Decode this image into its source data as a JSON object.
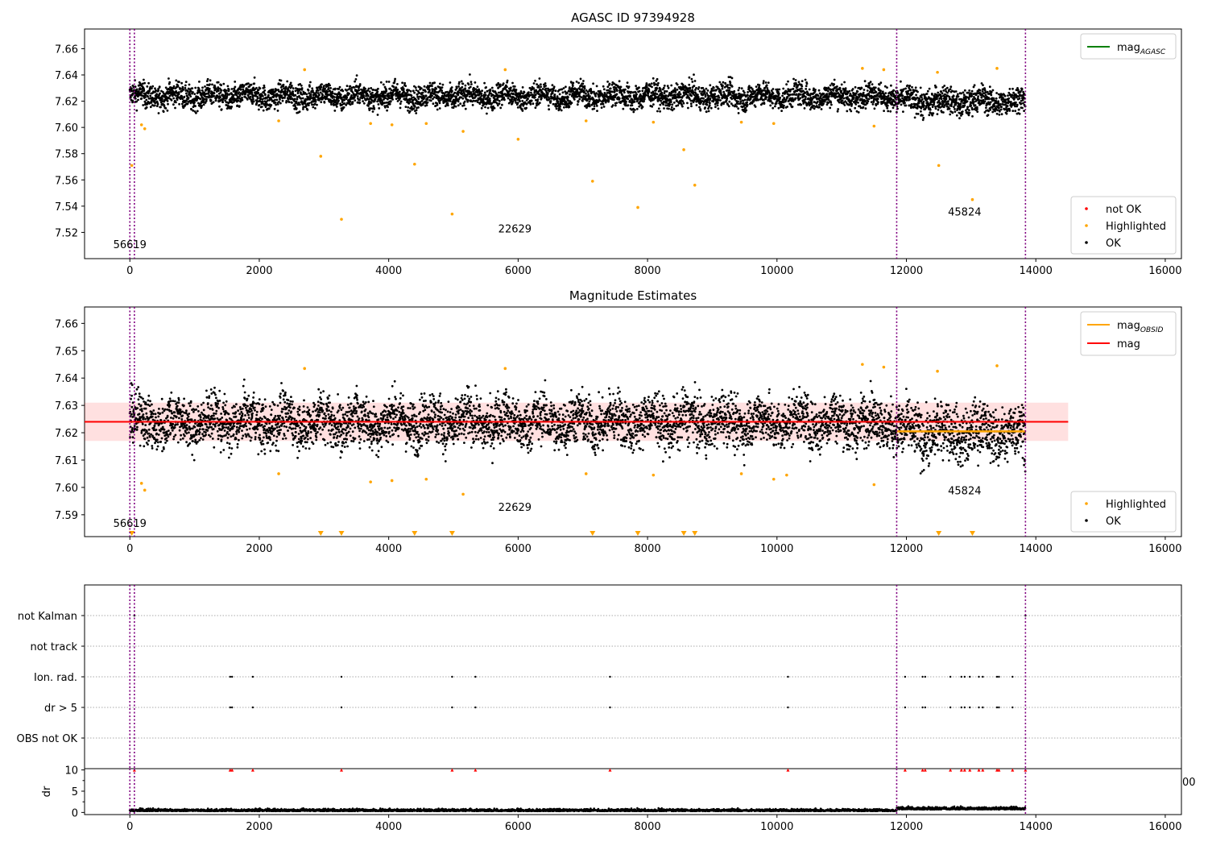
{
  "chart_data": [
    {
      "type": "scatter",
      "title": "AGASC ID 97394928",
      "xlim": [
        -700,
        16250
      ],
      "ylim": [
        7.5,
        7.675
      ],
      "x_ticks": [
        0,
        2000,
        4000,
        6000,
        8000,
        10000,
        12000,
        14000,
        16000
      ],
      "y_ticks": [
        7.52,
        7.54,
        7.56,
        7.58,
        7.6,
        7.62,
        7.64,
        7.66
      ],
      "x_tick_labels": [
        "0",
        "2000",
        "4000",
        "6000",
        "8000",
        "10000",
        "12000",
        "14000",
        "16000"
      ],
      "y_tick_labels": [
        "7.52",
        "7.54",
        "7.56",
        "7.58",
        "7.60",
        "7.62",
        "7.64",
        "7.66"
      ],
      "legend_top": {
        "placement": "top-right",
        "entries": [
          {
            "label": "mag",
            "sub": "AGASC",
            "color": "#008000"
          }
        ]
      },
      "legend_bottom": {
        "placement": "bottom-right",
        "entries": [
          {
            "label": "not OK",
            "color": "#ff0000"
          },
          {
            "label": "Highlighted",
            "color": "#ffa500"
          },
          {
            "label": "OK",
            "color": "#000000"
          }
        ]
      },
      "obsid_boundaries": [
        0,
        70,
        11850,
        13840
      ],
      "obsid_labels": [
        {
          "text": "56619",
          "x": 0,
          "y": 7.508
        },
        {
          "text": "22629",
          "x": 5950,
          "y": 7.52
        },
        {
          "text": "45824",
          "x": 12900,
          "y": 7.533
        }
      ],
      "segments": [
        {
          "x": [
            0,
            11850
          ],
          "center": 7.624,
          "spread": 0.006
        },
        {
          "x": [
            11850,
            13840
          ],
          "center": 7.62,
          "spread": 0.0065
        }
      ],
      "highlighted_points": [
        [
          30,
          7.571
        ],
        [
          180,
          7.602
        ],
        [
          230,
          7.599
        ],
        [
          2300,
          7.605
        ],
        [
          2700,
          7.644
        ],
        [
          2950,
          7.578
        ],
        [
          3270,
          7.53
        ],
        [
          3720,
          7.603
        ],
        [
          4050,
          7.602
        ],
        [
          4400,
          7.572
        ],
        [
          4580,
          7.603
        ],
        [
          4980,
          7.534
        ],
        [
          5150,
          7.597
        ],
        [
          5800,
          7.644
        ],
        [
          6000,
          7.591
        ],
        [
          7050,
          7.605
        ],
        [
          7150,
          7.559
        ],
        [
          7850,
          7.539
        ],
        [
          8090,
          7.604
        ],
        [
          8560,
          7.583
        ],
        [
          8730,
          7.556
        ],
        [
          9450,
          7.604
        ],
        [
          9950,
          7.603
        ],
        [
          11320,
          7.645
        ],
        [
          11500,
          7.601
        ],
        [
          11650,
          7.644
        ],
        [
          12480,
          7.642
        ],
        [
          12500,
          7.571
        ],
        [
          13020,
          7.545
        ],
        [
          13400,
          7.645
        ]
      ]
    },
    {
      "type": "scatter",
      "title": "Magnitude Estimates",
      "xlim": [
        -700,
        16250
      ],
      "ylim": [
        7.582,
        7.666
      ],
      "x_ticks": [
        0,
        2000,
        4000,
        6000,
        8000,
        10000,
        12000,
        14000,
        16000
      ],
      "y_ticks": [
        7.59,
        7.6,
        7.61,
        7.62,
        7.63,
        7.64,
        7.65,
        7.66
      ],
      "x_tick_labels": [
        "0",
        "2000",
        "4000",
        "6000",
        "8000",
        "10000",
        "12000",
        "14000",
        "16000"
      ],
      "y_tick_labels": [
        "7.59",
        "7.60",
        "7.61",
        "7.62",
        "7.63",
        "7.64",
        "7.65",
        "7.66"
      ],
      "legend_top": {
        "placement": "top-right",
        "entries": [
          {
            "label": "mag",
            "sub": "OBSID",
            "color": "#ffa500"
          },
          {
            "label": "mag",
            "sub": "",
            "color": "#ff0000"
          }
        ]
      },
      "legend_bottom": {
        "placement": "bottom-right",
        "entries": [
          {
            "label": "Highlighted",
            "color": "#ffa500"
          },
          {
            "label": "OK",
            "color": "#000000"
          }
        ]
      },
      "obsid_boundaries": [
        0,
        70,
        11850,
        13840
      ],
      "obsid_labels": [
        {
          "text": "56619",
          "x": 0,
          "y": 7.5855
        },
        {
          "text": "22629",
          "x": 5950,
          "y": 7.5915
        },
        {
          "text": "45824",
          "x": 12900,
          "y": 7.5975
        }
      ],
      "mag_line": {
        "value": 7.624,
        "band": [
          7.617,
          7.631
        ],
        "x": [
          -700,
          14500
        ]
      },
      "obsid_mag_lines": [
        {
          "x": [
            11850,
            13840
          ],
          "value": 7.6205
        }
      ],
      "segments": [
        {
          "x": [
            0,
            11850
          ],
          "center": 7.624,
          "spread": 0.006
        },
        {
          "x": [
            11850,
            13840
          ],
          "center": 7.62,
          "spread": 0.0065
        }
      ],
      "highlighted_points": [
        [
          180,
          7.6015
        ],
        [
          230,
          7.599
        ],
        [
          2300,
          7.605
        ],
        [
          2700,
          7.6435
        ],
        [
          3720,
          7.602
        ],
        [
          4050,
          7.6025
        ],
        [
          4580,
          7.603
        ],
        [
          5150,
          7.5975
        ],
        [
          5800,
          7.6435
        ],
        [
          7050,
          7.605
        ],
        [
          8090,
          7.6045
        ],
        [
          9450,
          7.605
        ],
        [
          9950,
          7.603
        ],
        [
          10150,
          7.6045
        ],
        [
          11320,
          7.645
        ],
        [
          11500,
          7.601
        ],
        [
          11650,
          7.644
        ],
        [
          12480,
          7.6425
        ],
        [
          13400,
          7.6445
        ]
      ],
      "offscale_markers": [
        30,
        2950,
        3270,
        4400,
        4980,
        7150,
        7850,
        8560,
        8730,
        12500,
        13020
      ]
    },
    {
      "type": "scatter",
      "title": "",
      "xlim": [
        -700,
        16250
      ],
      "categories": [
        "not Kalman",
        "not track",
        "Ion. rad.",
        "dr > 5",
        "OBS not OK"
      ],
      "obsid_boundaries": [
        0,
        70,
        11850,
        13840
      ],
      "flag_points": {
        "not Kalman": [
          70,
          13840
        ],
        "not track": [],
        "Ion. rad.": [
          1550,
          1580,
          1900,
          3270,
          4980,
          5340,
          7420,
          10170,
          11980,
          12250,
          12290,
          12680,
          12850,
          12900,
          12980,
          13120,
          13180,
          13400,
          13430,
          13640
        ],
        "dr > 5": [
          1550,
          1580,
          1900,
          3270,
          4980,
          5340,
          7420,
          10170,
          11980,
          12250,
          12290,
          12680,
          12850,
          12900,
          12980,
          13120,
          13180,
          13400,
          13430,
          13640
        ],
        "OBS not OK": []
      }
    },
    {
      "type": "scatter",
      "title": "",
      "ylabel": "dr",
      "xlim": [
        -700,
        16250
      ],
      "ylim": [
        -0.5,
        10.3
      ],
      "x_ticks": [
        0,
        2000,
        4000,
        6000,
        8000,
        10000,
        12000,
        14000,
        16000
      ],
      "y_ticks": [
        0,
        5,
        10
      ],
      "x_tick_labels": [
        "0",
        "2000",
        "4000",
        "6000",
        "8000",
        "10000",
        "12000",
        "14000",
        "16000"
      ],
      "y_tick_labels": [
        "0",
        "5",
        "10"
      ],
      "stray_tick_label": "00",
      "obsid_boundaries": [
        0,
        70,
        11850,
        13840
      ],
      "capped_markers": [
        70,
        1550,
        1580,
        1900,
        3270,
        4980,
        5340,
        7420,
        10170,
        11980,
        12250,
        12290,
        12680,
        12850,
        12900,
        12980,
        13120,
        13180,
        13400,
        13430,
        13640,
        13840
      ]
    }
  ]
}
